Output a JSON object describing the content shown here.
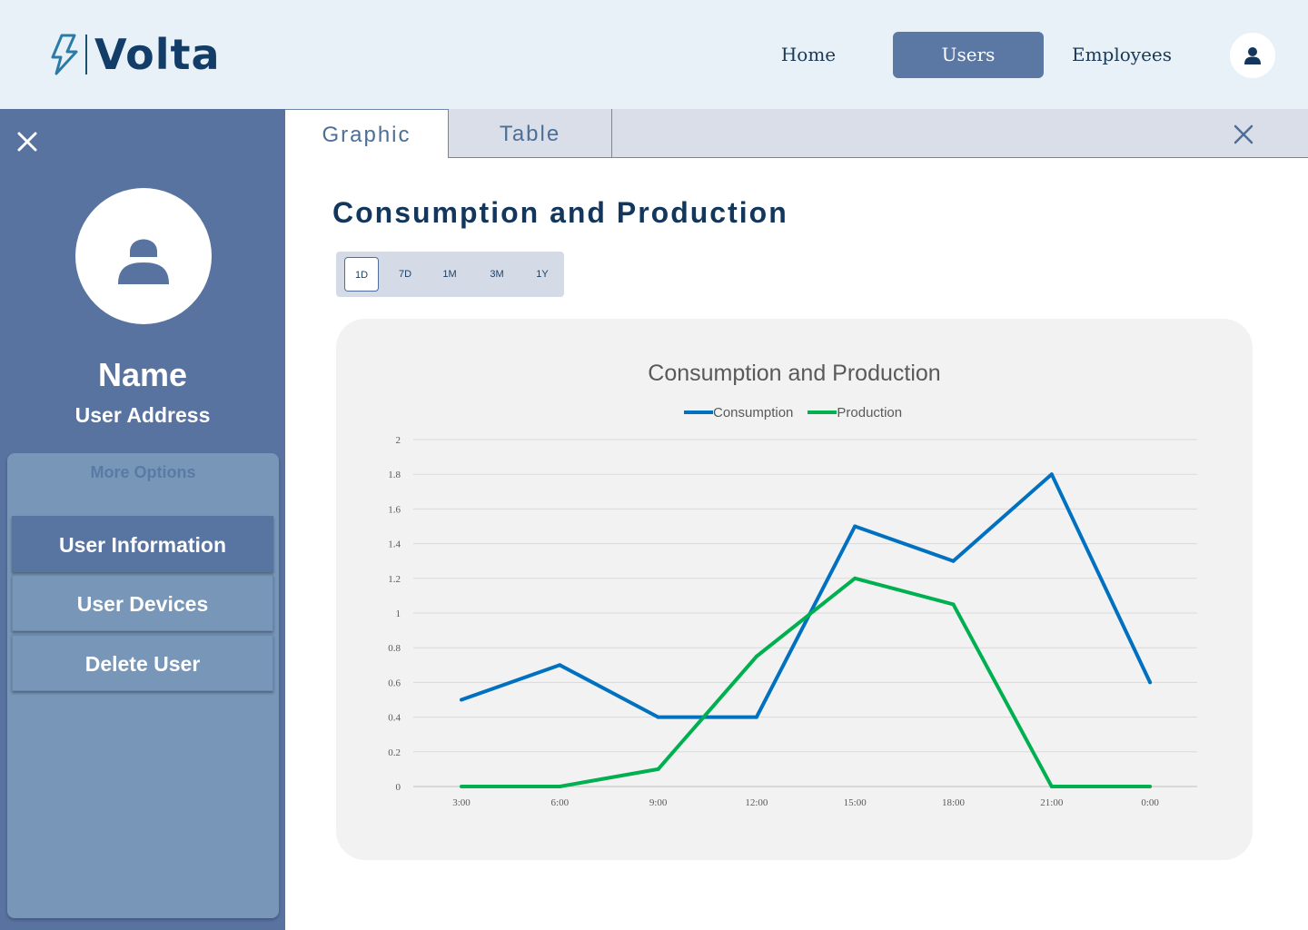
{
  "header": {
    "logo_text": "Volta",
    "nav": [
      {
        "label": "Home",
        "active": false
      },
      {
        "label": "Users",
        "active": true
      },
      {
        "label": "Employees",
        "active": false
      }
    ],
    "account_icon": "user-icon"
  },
  "sidebar": {
    "close_icon": "close-icon",
    "avatar_icon": "user-icon",
    "name": "Name",
    "address": "User Address",
    "options_title": "More Options",
    "options": [
      {
        "label": "User Information",
        "active": true
      },
      {
        "label": "User Devices",
        "active": false
      },
      {
        "label": "Delete User",
        "active": false
      }
    ]
  },
  "tabs": [
    {
      "label": "Graphic",
      "active": true
    },
    {
      "label": "Table",
      "active": false
    }
  ],
  "main": {
    "title": "Consumption and Production",
    "ranges": [
      {
        "label": "1D",
        "active": true
      },
      {
        "label": "7D",
        "active": false
      },
      {
        "label": "1M",
        "active": false
      },
      {
        "label": "3M",
        "active": false
      },
      {
        "label": "1Y",
        "active": false
      }
    ]
  },
  "colors": {
    "accent": "#5b78a4",
    "sidebar": "#5873a0",
    "consumption": "#0070c0",
    "production": "#00b050"
  },
  "chart_data": {
    "type": "line",
    "title": "Consumption and Production",
    "categories": [
      "3:00",
      "6:00",
      "9:00",
      "12:00",
      "15:00",
      "18:00",
      "21:00",
      "0:00"
    ],
    "series": [
      {
        "name": "Consumption",
        "color": "#0070c0",
        "values": [
          0.5,
          0.7,
          0.4,
          0.4,
          1.5,
          1.3,
          1.8,
          0.6
        ]
      },
      {
        "name": "Production",
        "color": "#00b050",
        "values": [
          0,
          0,
          0.1,
          0.75,
          1.2,
          1.05,
          0,
          0
        ]
      }
    ],
    "ylim": [
      0,
      2
    ],
    "yticks": [
      0,
      0.2,
      0.4,
      0.6,
      0.8,
      1,
      1.2,
      1.4,
      1.6,
      1.8,
      2
    ],
    "grid": true,
    "legend": "top-center"
  }
}
